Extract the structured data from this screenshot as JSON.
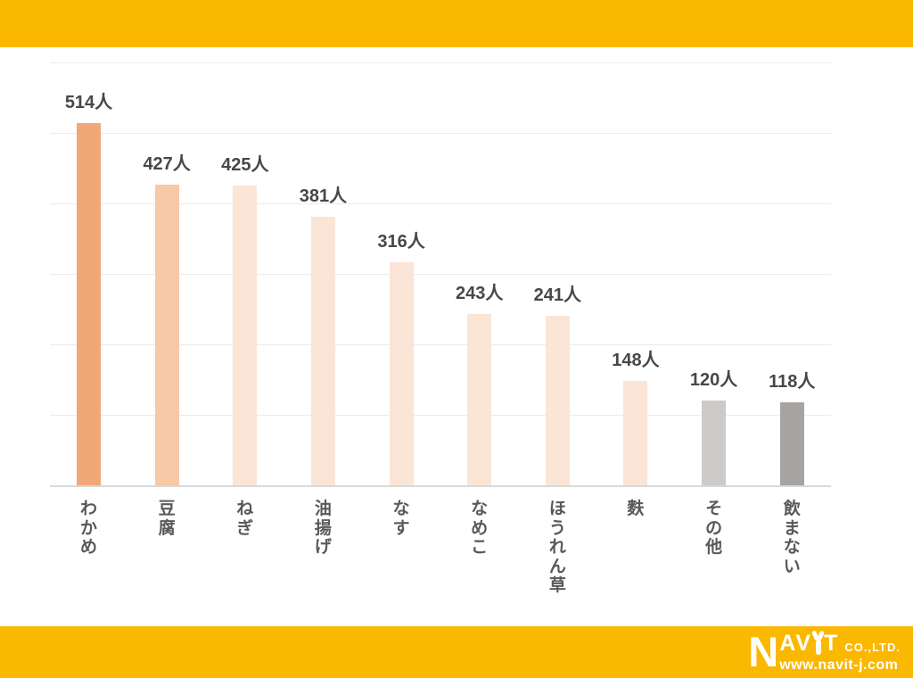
{
  "colors": {
    "brand_band": "#FBB800",
    "value_label": "#474747",
    "category_label": "#595959",
    "gridline": "#EBEBEB",
    "axis_line": "#D9D9D9",
    "logo_text": "#FFFFFF"
  },
  "chart_data": {
    "type": "bar",
    "title": "",
    "xlabel": "",
    "ylabel": "",
    "unit": "人",
    "categories": [
      "わかめ",
      "豆腐",
      "ねぎ",
      "油揚げ",
      "なす",
      "なめこ",
      "ほうれん草",
      "麩",
      "その他",
      "飲まない"
    ],
    "values": [
      514,
      427,
      425,
      381,
      316,
      243,
      241,
      148,
      120,
      118
    ],
    "value_labels": [
      "514人",
      "427人",
      "425人",
      "381人",
      "316人",
      "243人",
      "241人",
      "148人",
      "120人",
      "118人"
    ],
    "bar_colors": [
      "#F0A878",
      "#F7C9A6",
      "#FBE5D6",
      "#FBE5D6",
      "#FBE5D6",
      "#FBE5D6",
      "#FBE5D6",
      "#FBE5D6",
      "#CCCBCA",
      "#A6A3A1"
    ],
    "ylim": [
      0,
      600
    ],
    "gridline_step": 100,
    "grid": true,
    "legend": false,
    "value_labels_position": "above-bars",
    "category_labels_orientation": "vertical"
  },
  "footer": {
    "logo_n": "N",
    "logo_av": "AV",
    "logo_t": "T",
    "logo_co": "CO.,LTD.",
    "logo_url": "www.navit-j.com"
  }
}
